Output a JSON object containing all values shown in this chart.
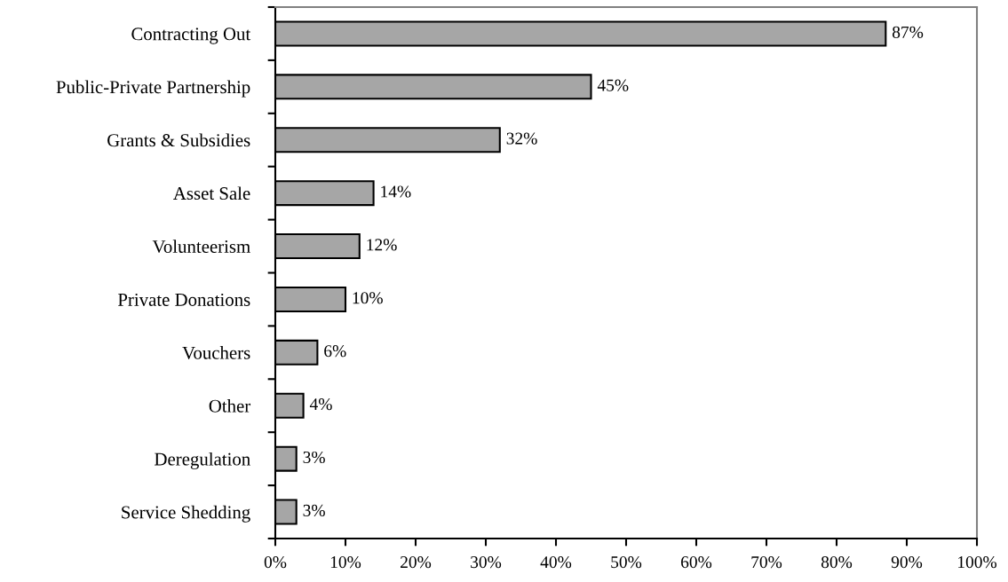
{
  "chart_data": {
    "type": "bar",
    "orientation": "horizontal",
    "categories": [
      "Contracting Out",
      "Public-Private Partnership",
      "Grants & Subsidies",
      "Asset Sale",
      "Volunteerism",
      "Private Donations",
      "Vouchers",
      "Other",
      "Deregulation",
      "Service Shedding"
    ],
    "values": [
      87,
      45,
      32,
      14,
      12,
      10,
      6,
      4,
      3,
      3
    ],
    "value_labels": [
      "87%",
      "45%",
      "32%",
      "14%",
      "12%",
      "10%",
      "6%",
      "4%",
      "3%",
      "3%"
    ],
    "color": "#a6a6a6",
    "xlim": [
      0,
      100
    ],
    "xticks": [
      {
        "value": 0,
        "label": "0%"
      },
      {
        "value": 10,
        "label": "10%"
      },
      {
        "value": 20,
        "label": "20%"
      },
      {
        "value": 30,
        "label": "30%"
      },
      {
        "value": 40,
        "label": "40%"
      },
      {
        "value": 50,
        "label": "50%"
      },
      {
        "value": 60,
        "label": "60%"
      },
      {
        "value": 70,
        "label": "70%"
      },
      {
        "value": 80,
        "label": "80%"
      },
      {
        "value": 90,
        "label": "90%"
      },
      {
        "value": 100,
        "label": "100%"
      }
    ],
    "grid": false,
    "legend": false
  }
}
